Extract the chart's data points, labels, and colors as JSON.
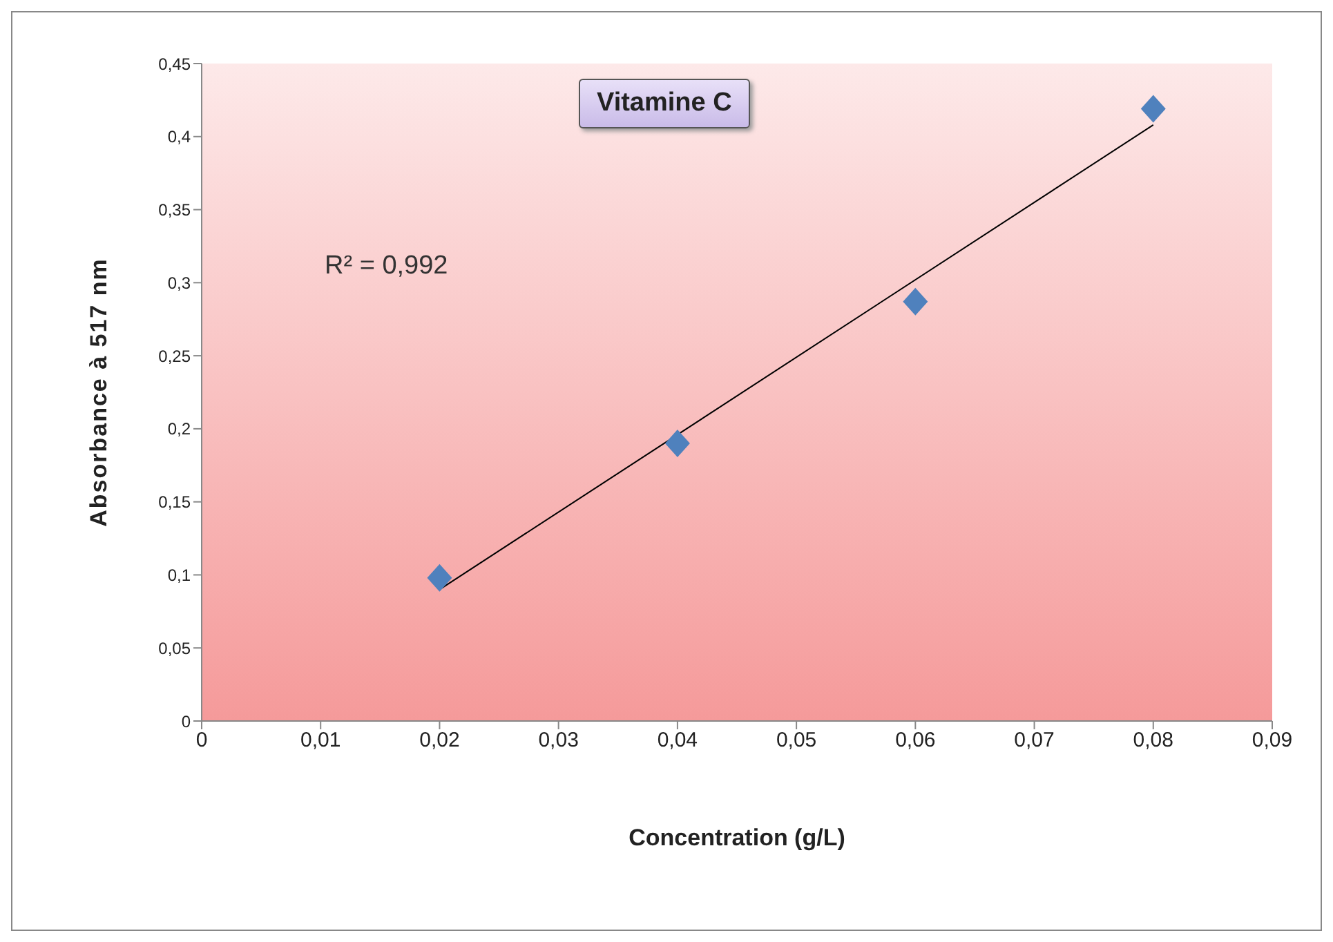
{
  "chart_data": {
    "type": "scatter",
    "title": "Vitamine C",
    "xlabel": "Concentration (g/L)",
    "ylabel": "Absorbance à 517 nm",
    "annotations": [
      "R² = 0,992"
    ],
    "series": [
      {
        "color": "#4f81bd",
        "marker": "diamond",
        "x": [
          0.02,
          0.04,
          0.06,
          0.08
        ],
        "values": [
          0.098,
          0.19,
          0.287,
          0.419
        ]
      },
      {
        "type": "line",
        "color": "#000000",
        "marker": "none",
        "x": [
          0.02,
          0.08
        ],
        "values": [
          0.09,
          0.408
        ]
      }
    ],
    "xlim": [
      0,
      0.09
    ],
    "ylim": [
      0,
      0.45
    ],
    "xticks": [
      0,
      {
        "value": 0.01,
        "label": "0,01"
      },
      {
        "value": 0.02,
        "label": "0,02"
      },
      {
        "value": 0.03,
        "label": "0,03"
      },
      {
        "value": 0.04,
        "label": "0,04"
      },
      {
        "value": 0.05,
        "label": "0,05"
      },
      {
        "value": 0.06,
        "label": "0,06"
      },
      {
        "value": 0.07,
        "label": "0,07"
      },
      {
        "value": 0.08,
        "label": "0,08"
      },
      {
        "value": 0.09,
        "label": "0,09"
      }
    ],
    "yticks": [
      0,
      {
        "value": 0.05,
        "label": "0,05"
      },
      {
        "value": 0.1,
        "label": "0,1"
      },
      {
        "value": 0.15,
        "label": "0,15"
      },
      {
        "value": 0.2,
        "label": "0,2"
      },
      {
        "value": 0.25,
        "label": "0,25"
      },
      {
        "value": 0.3,
        "label": "0,3"
      },
      {
        "value": 0.35,
        "label": "0,35"
      },
      {
        "value": 0.4,
        "label": "0,4"
      },
      {
        "value": 0.45,
        "label": "0,45"
      }
    ],
    "grid": false
  }
}
